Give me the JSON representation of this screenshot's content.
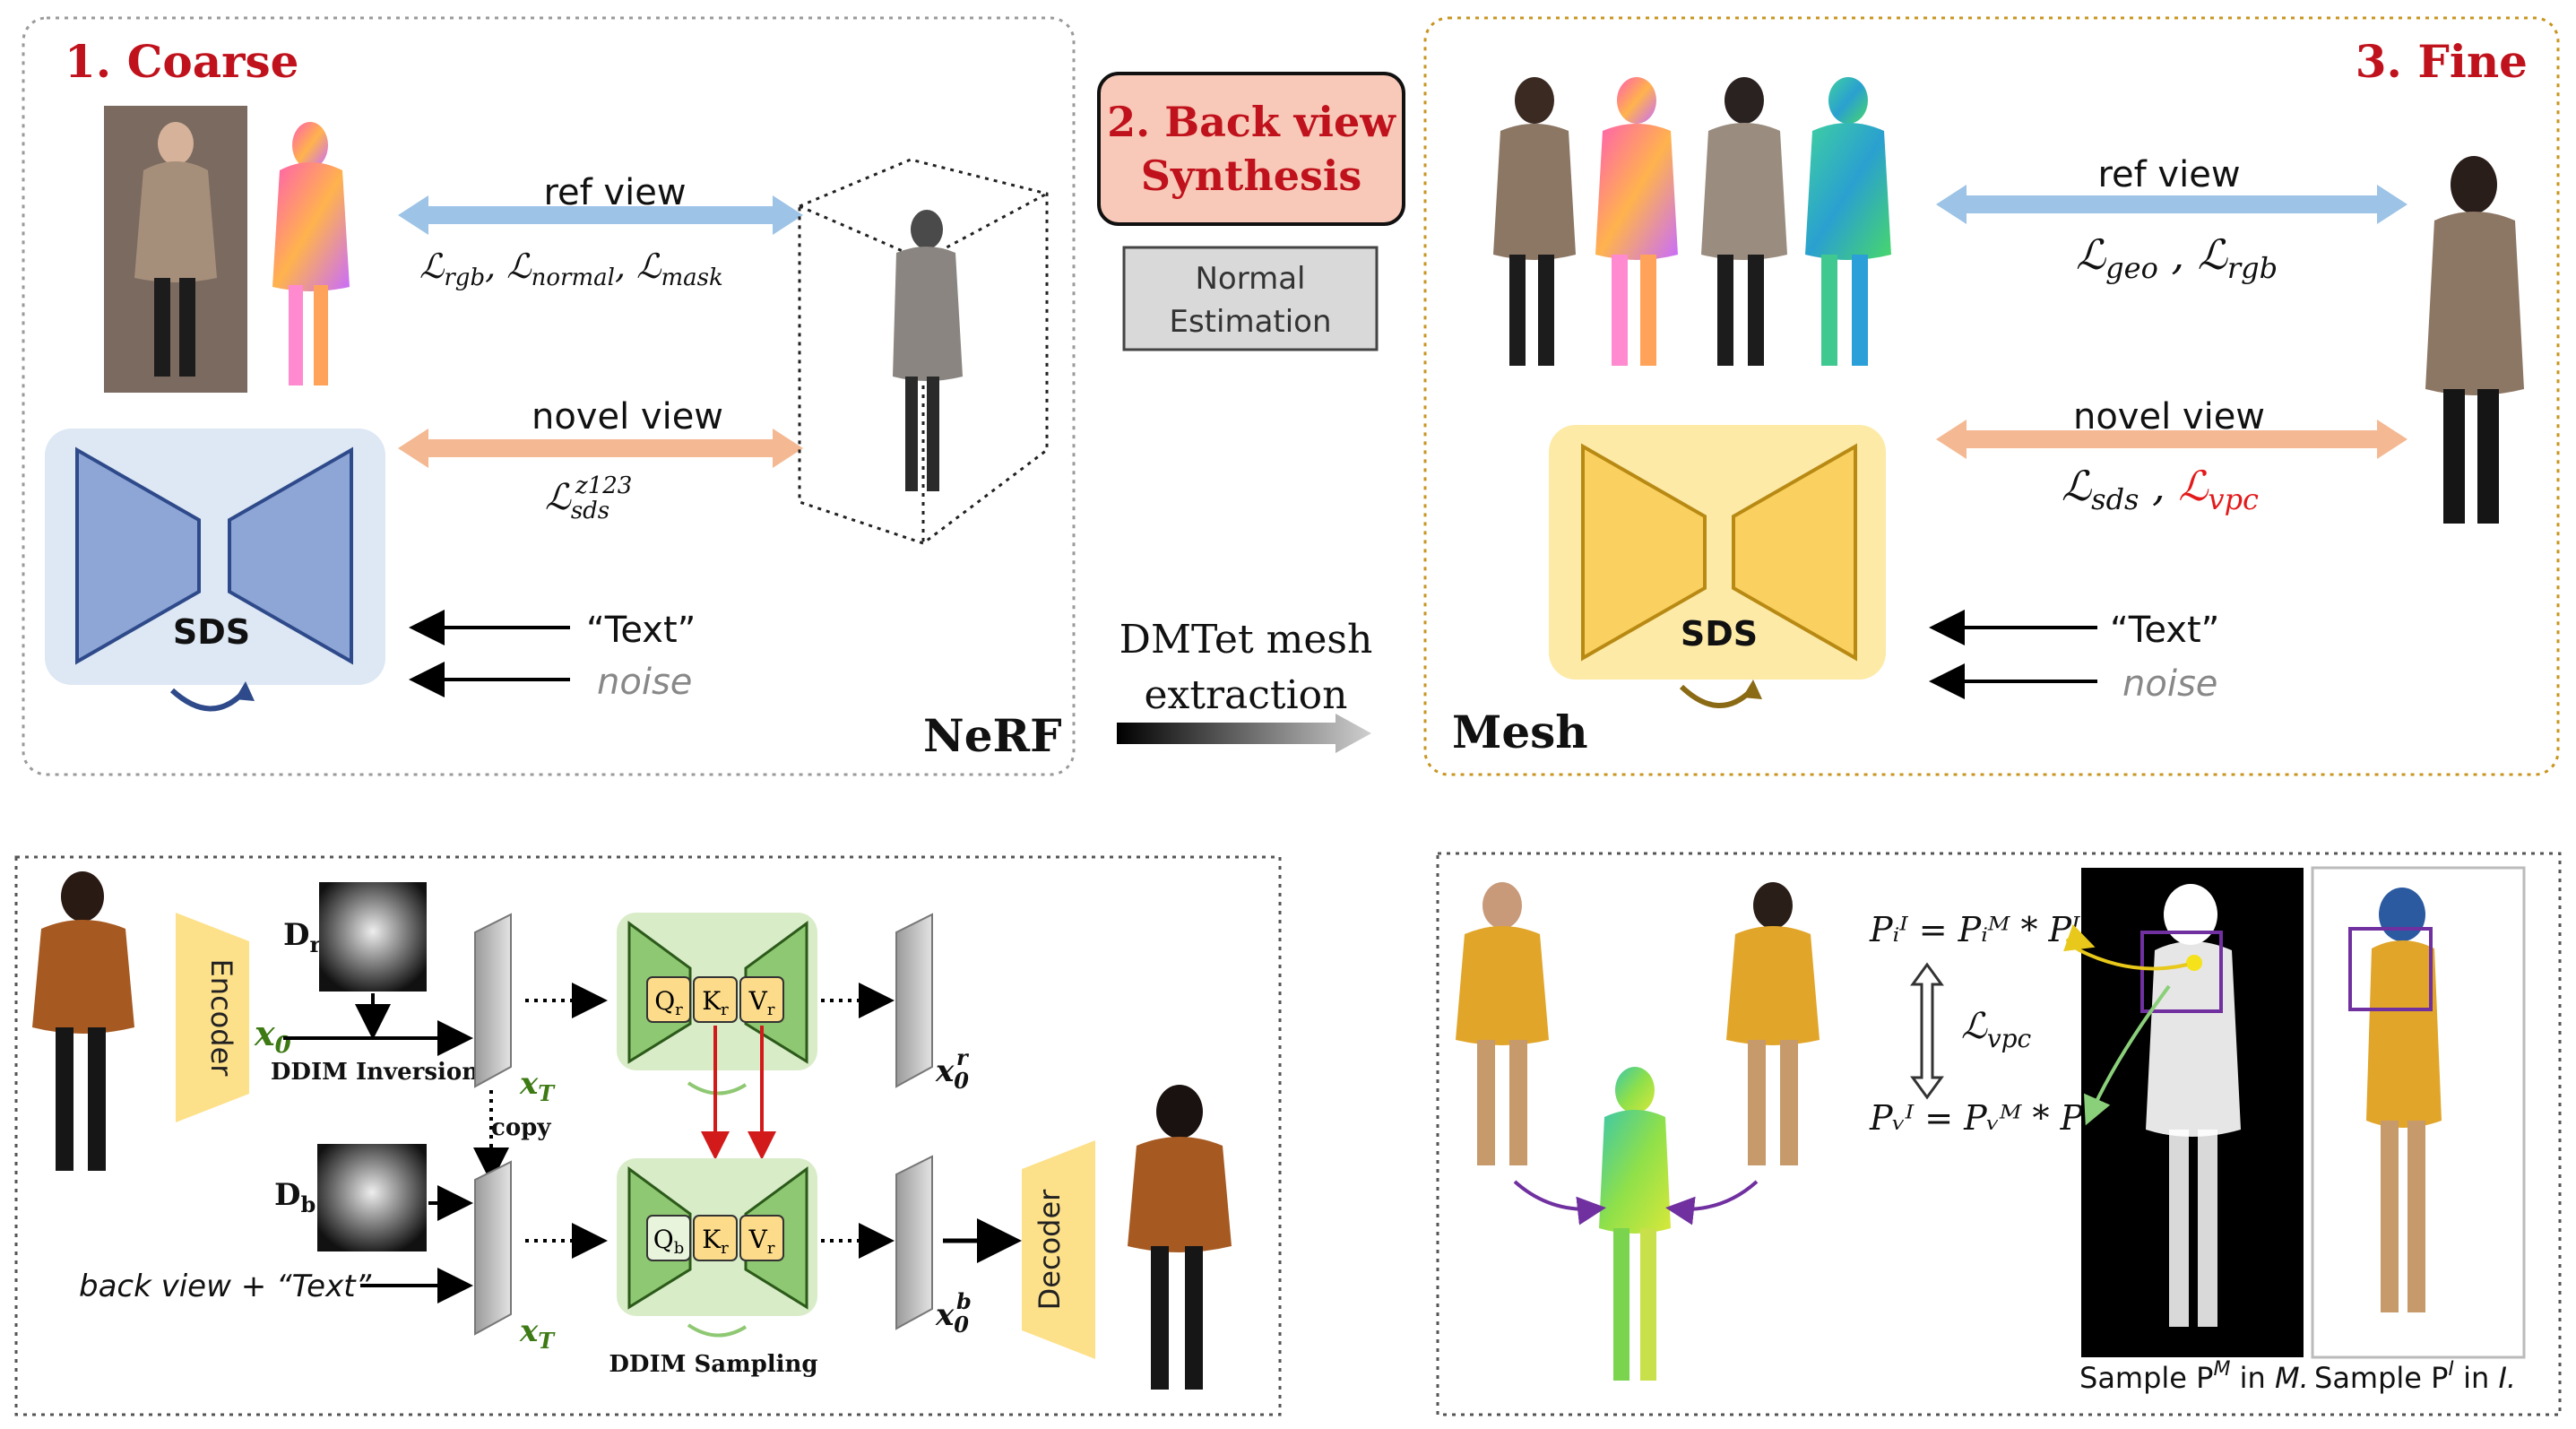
{
  "stages": {
    "coarse": {
      "title": "1. Coarse",
      "label": "NeRF"
    },
    "backview": {
      "title_line1": "2. Back view",
      "title_line2": "Synthesis",
      "normal_line1": "Normal",
      "normal_line2": "Estimation"
    },
    "fine": {
      "title": "3. Fine",
      "label": "Mesh"
    }
  },
  "coarse": {
    "ref_view": "ref view",
    "ref_losses": [
      "rgb",
      "normal",
      "mask"
    ],
    "novel_view": "novel view",
    "novel_loss_sub": "sds",
    "novel_loss_sup": "z123",
    "sds_label": "SDS",
    "text_input": "“Text”",
    "noise_input": "noise"
  },
  "fine": {
    "ref_view": "ref view",
    "ref_losses": [
      "geo",
      "rgb"
    ],
    "novel_view": "novel view",
    "novel_losses": [
      "sds",
      "vpc"
    ],
    "sds_label": "SDS",
    "text_input": "“Text”",
    "noise_input": "noise"
  },
  "transition": {
    "line1": "DMTet mesh",
    "line2": "extraction"
  },
  "backview_detail": {
    "encoder": "Encoder",
    "decoder": "Decoder",
    "x0": "x",
    "x0_sub": "0",
    "dr": "D",
    "dr_sub": "r",
    "db": "D",
    "db_sub": "b",
    "ddim_inversion": "DDIM Inversion",
    "ddim_sampling": "DDIM Sampling",
    "copy": "copy",
    "xT": "x",
    "xT_sub": "T",
    "x0r_sup": "r",
    "x0b_sup": "b",
    "back_text": "back view + “Text”",
    "q_ref": "Q",
    "k_ref": "K",
    "v_ref": "V",
    "q_sub_ref": "r",
    "q_sub_back": "b"
  },
  "vpc_detail": {
    "eq_top": "Pᵢᴵ = Pᵢᴹ * Pᴵ",
    "eq_bottom": "Pᵥᴵ = Pᵥᴹ * Pᴵ",
    "loss": "vpc",
    "caption_mask": "Sample P",
    "caption_mask_sup": "M",
    "caption_mask_in": " in ",
    "caption_mask_set": "M.",
    "caption_img": "Sample P",
    "caption_img_sup": "I",
    "caption_img_in": " in ",
    "caption_img_set": "I."
  },
  "colors": {
    "title_red": "#c0121c",
    "ref_arrow": "#9dc3e6",
    "novel_arrow": "#f4b993",
    "sds_coarse_bg": "#dde8f4",
    "sds_coarse_fill": "#8ea6d6",
    "sds_coarse_stroke": "#2f4a8a",
    "sds_fine_bg": "#fdeaa7",
    "sds_fine_fill": "#fad160",
    "sds_fine_stroke": "#b88a14",
    "backview_box": "#f8c9b8",
    "unet_green_bg": "#d8ecc8",
    "unet_green": "#8fc873",
    "qkv": "#fcdc8b",
    "encoder": "#fde08a",
    "purple": "#7030a0",
    "vpc_red": "#e31a1c"
  }
}
